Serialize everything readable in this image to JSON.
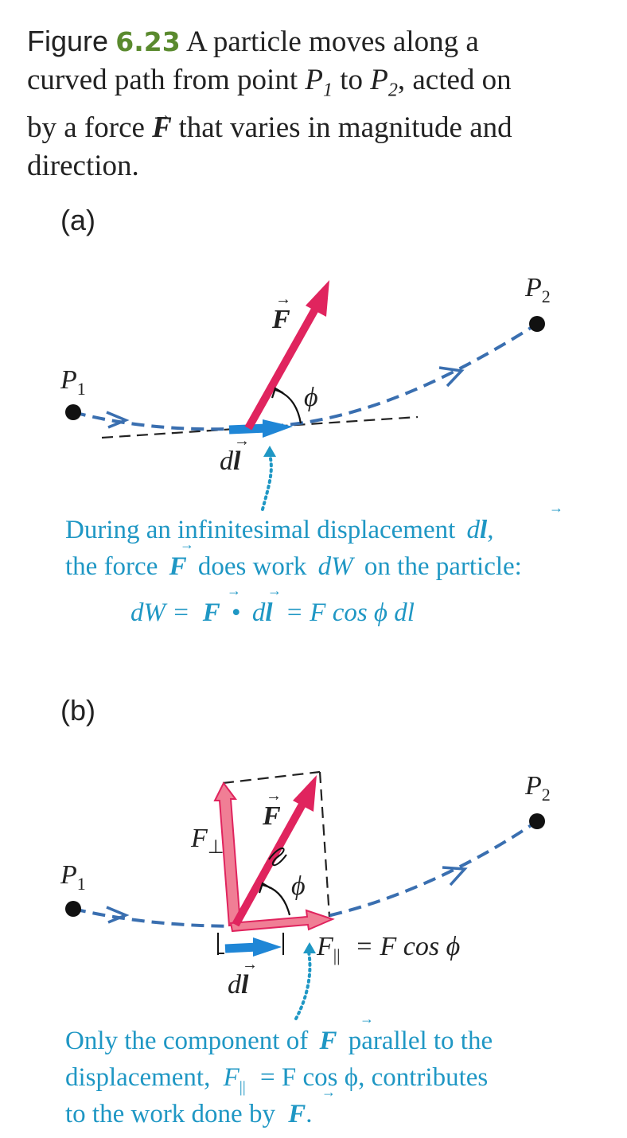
{
  "caption": {
    "figure_label": "Figure",
    "figure_number": "6.23",
    "text_1": "A particle moves along a",
    "text_2": "curved path from point",
    "text_3": "to",
    "text_4": ", acted on",
    "text_5": "by a force",
    "text_6": "that varies in magnitude and",
    "text_7": "direction."
  },
  "symbols": {
    "P": "P",
    "sub1": "1",
    "sub2": "2",
    "F": "F",
    "phi": "ϕ",
    "d": "d",
    "l": "l",
    "F_perp": "F",
    "perp": "⊥",
    "parallel": "||"
  },
  "panel_a": {
    "label": "(a)",
    "annotation_line1": "During an infinitesimal displacement",
    "annotation_line1_end": ",",
    "annotation_line2a": "the force",
    "annotation_line2b": "does work",
    "annotation_line2c": "dW",
    "annotation_line2d": "on the particle:",
    "equation_lhs": "dW =",
    "equation_dot": "•",
    "equation_rhs": "= F cos ϕ dl"
  },
  "panel_b": {
    "label": "(b)",
    "f_parallel_eq": "= F cos ϕ",
    "annotation_line1a": "Only the component of",
    "annotation_line1b": "parallel to the",
    "annotation_line2a": "displacement,",
    "annotation_line2b": "= F cos ϕ, contributes",
    "annotation_line3a": "to the work done by",
    "annotation_line3b": "."
  },
  "colors": {
    "force": "#e0245e",
    "force_component": "#f07e95",
    "displacement": "#1f86d6",
    "path": "#3a6fb0",
    "annotation": "#1f97c4",
    "caption_accent": "#5a8a2e"
  }
}
